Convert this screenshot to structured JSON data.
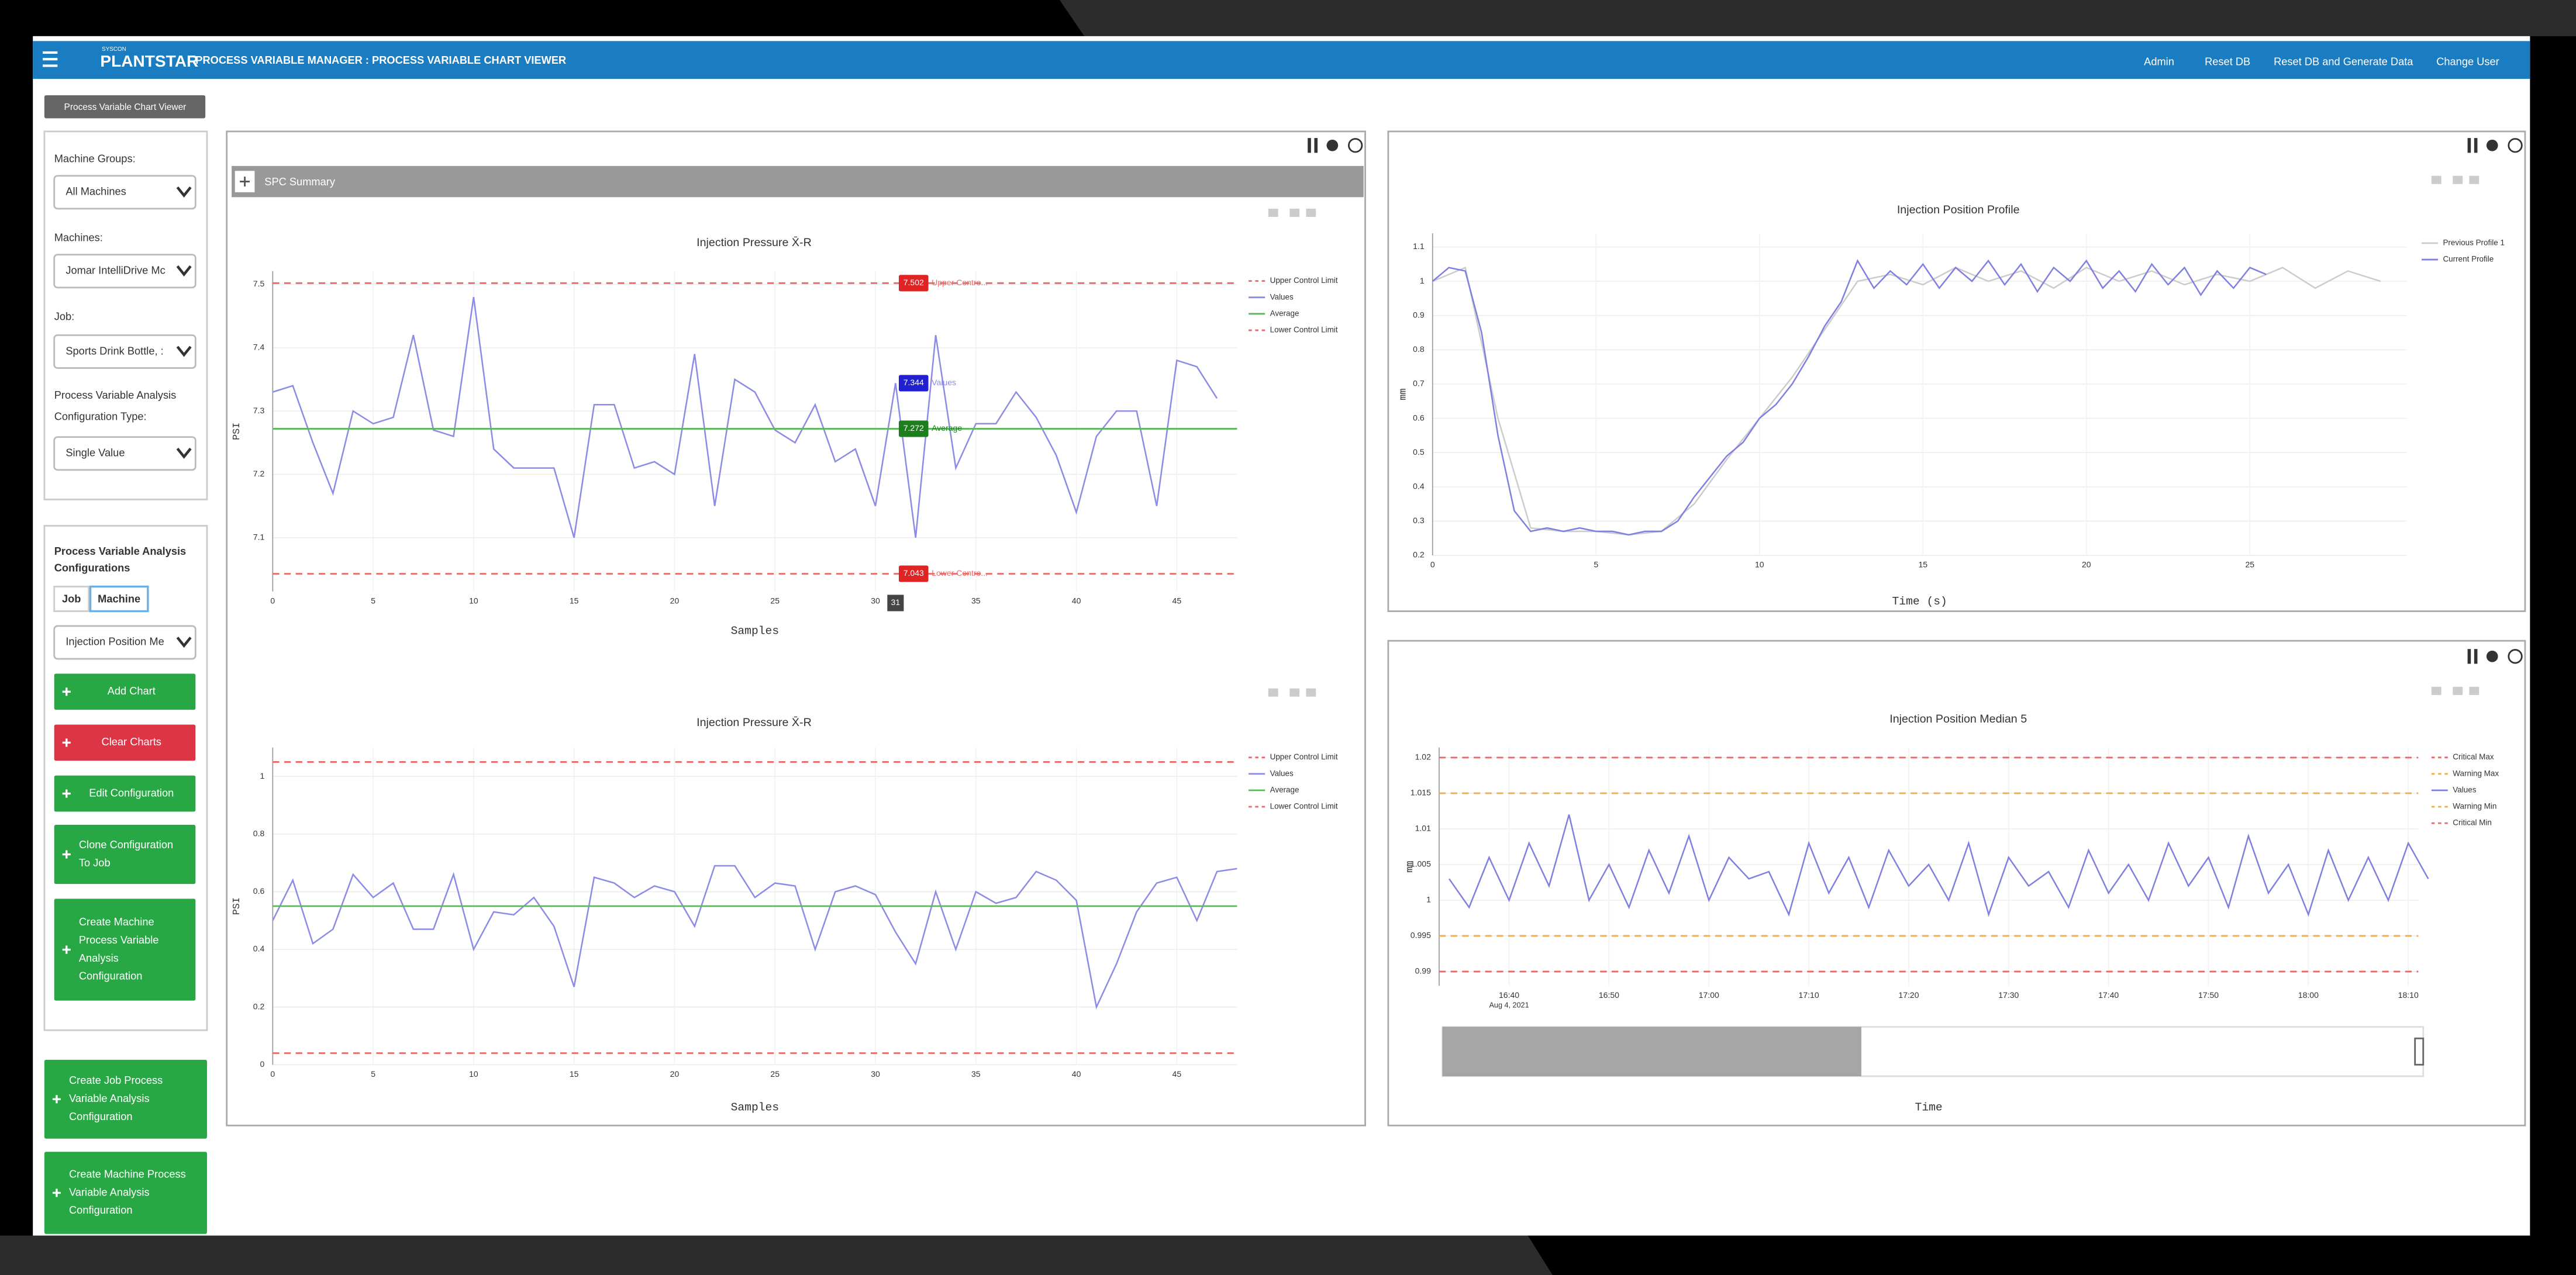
{
  "header": {
    "brand_small": "SYSCON",
    "brand": "PLANTSTAR",
    "title": "PROCESS VARIABLE MANAGER : PROCESS VARIABLE CHART VIEWER",
    "menu": [
      "Admin",
      "Reset DB",
      "Reset DB and Generate Data",
      "Change User"
    ]
  },
  "view_selector": "Process Variable Chart Viewer",
  "sidebar": {
    "machine_groups_label": "Machine Groups:",
    "machine_groups": "All Machines",
    "machines_label": "Machines:",
    "machines": "Jomar IntelliDrive Mc",
    "job_label": "Job:",
    "job": "Sports Drink Bottle, :",
    "config_type_label": [
      "Process Variable Analysis",
      "Configuration Type:"
    ],
    "config_type": "Single Value",
    "configs_title": [
      "Process Variable Analysis",
      "Configurations"
    ],
    "tabs": [
      "Job",
      "Machine"
    ],
    "config": "Injection Position Me",
    "buttons": [
      {
        "lines": [
          "Add Chart"
        ],
        "color": "#28a745"
      },
      {
        "lines": [
          "Clear Charts"
        ],
        "color": "#dc3545"
      },
      {
        "lines": [
          "Edit Configuration"
        ],
        "color": "#28a745"
      },
      {
        "lines": [
          "Clone Configuration",
          "To Job"
        ],
        "color": "#28a745"
      },
      {
        "lines": [
          "Create Machine",
          "Process Variable",
          "Analysis",
          "Configuration"
        ],
        "color": "#28a745"
      },
      {
        "lines": [
          "Create Job Process",
          "Variable Analysis",
          "Configuration"
        ],
        "color": "#28a745"
      },
      {
        "lines": [
          "Create Machine Process",
          "Variable Analysis",
          "Configuration"
        ],
        "color": "#28a745"
      }
    ]
  },
  "spc_summary": "SPC Summary",
  "chart_data": [
    {
      "type": "line",
      "title": "Injection Pressure X̄-R",
      "x_label": "Samples",
      "y_label": "PSI",
      "xlim": [
        0,
        48
      ],
      "xticks": [
        0,
        5,
        10,
        15,
        20,
        25,
        30,
        35,
        40,
        45
      ],
      "ylim": [
        7.015,
        7.521
      ],
      "yticks": [
        7.1,
        7.2,
        7.3,
        7.4,
        7.5
      ],
      "hover_x": 31,
      "series": [
        {
          "name": "Upper Control Limit",
          "color": "#e86a6a",
          "dash": true,
          "value": 7.502,
          "label": "Upper Contro..."
        },
        {
          "name": "Values",
          "color": "#8c8ce6",
          "tag_value": 7.344,
          "label": "Values",
          "x": [
            0,
            1,
            2,
            3,
            4,
            5,
            6,
            7,
            8,
            9,
            10,
            11,
            12,
            13,
            14,
            15,
            16,
            17,
            18,
            19,
            20,
            21,
            22,
            23,
            24,
            25,
            26,
            27,
            28,
            29,
            30,
            31,
            32,
            33,
            34,
            35,
            36,
            37,
            38,
            39,
            40,
            41,
            42,
            43,
            44,
            45,
            46,
            47
          ],
          "values": [
            7.33,
            7.34,
            7.25,
            7.17,
            7.3,
            7.28,
            7.29,
            7.42,
            7.27,
            7.26,
            7.48,
            7.24,
            7.21,
            7.21,
            7.21,
            7.1,
            7.31,
            7.31,
            7.21,
            7.22,
            7.2,
            7.39,
            7.15,
            7.35,
            7.33,
            7.27,
            7.25,
            7.31,
            7.22,
            7.24,
            7.15,
            7.344,
            7.1,
            7.42,
            7.21,
            7.28,
            7.28,
            7.33,
            7.29,
            7.23,
            7.14,
            7.26,
            7.3,
            7.3,
            7.15,
            7.38,
            7.37,
            7.32
          ]
        },
        {
          "name": "Average",
          "color": "#5cb85c",
          "value": 7.272,
          "label": "Average",
          "tag_color": "#1e7e1e"
        },
        {
          "name": "Lower Control Limit",
          "color": "#e86a6a",
          "dash": true,
          "value": 7.043,
          "label": "Lower Contro..."
        }
      ]
    },
    {
      "type": "line",
      "title": "Injection Pressure X̄-R",
      "x_label": "Samples",
      "y_label": "PSI",
      "xlim": [
        0,
        48
      ],
      "xticks": [
        0,
        5,
        10,
        15,
        20,
        25,
        30,
        35,
        40,
        45
      ],
      "ylim": [
        0,
        1.1
      ],
      "yticks": [
        0,
        0.2,
        0.4,
        0.6,
        0.8,
        1
      ],
      "series": [
        {
          "name": "Upper Control Limit",
          "color": "#e86a6a",
          "dash": true,
          "value": 1.05
        },
        {
          "name": "Values",
          "color": "#8c8ce6",
          "x": [
            0,
            1,
            2,
            3,
            4,
            5,
            6,
            7,
            8,
            9,
            10,
            11,
            12,
            13,
            14,
            15,
            16,
            17,
            18,
            19,
            20,
            21,
            22,
            23,
            24,
            25,
            26,
            27,
            28,
            29,
            30,
            31,
            32,
            33,
            34,
            35,
            36,
            37,
            38,
            39,
            40,
            41,
            42,
            43,
            44,
            45,
            46,
            47,
            48
          ],
          "values": [
            0.5,
            0.64,
            0.42,
            0.47,
            0.66,
            0.58,
            0.63,
            0.47,
            0.47,
            0.66,
            0.4,
            0.53,
            0.52,
            0.58,
            0.48,
            0.27,
            0.65,
            0.63,
            0.58,
            0.62,
            0.6,
            0.48,
            0.69,
            0.69,
            0.58,
            0.63,
            0.62,
            0.4,
            0.6,
            0.62,
            0.59,
            0.46,
            0.35,
            0.6,
            0.4,
            0.6,
            0.56,
            0.58,
            0.67,
            0.64,
            0.57,
            0.2,
            0.35,
            0.53,
            0.63,
            0.65,
            0.5,
            0.67,
            0.68
          ]
        },
        {
          "name": "Average",
          "color": "#5cb85c",
          "value": 0.55
        },
        {
          "name": "Lower Control Limit",
          "color": "#e86a6a",
          "dash": true,
          "value": 0.04
        }
      ]
    },
    {
      "type": "line",
      "title": "Injection Position Profile",
      "x_label": "Time (s)",
      "y_label": "mm",
      "xlim": [
        0,
        29.8
      ],
      "xticks": [
        0,
        5,
        10,
        15,
        20,
        25
      ],
      "ylim": [
        0.2,
        1.14
      ],
      "yticks": [
        0.2,
        0.3,
        0.4,
        0.5,
        0.6,
        0.7,
        0.8,
        0.9,
        1,
        1.1
      ],
      "series": [
        {
          "name": "Previous Profile 1",
          "color": "#cccccc",
          "x": [
            0,
            1,
            2,
            3,
            4,
            5,
            6,
            7,
            8,
            9,
            10,
            11,
            12,
            13,
            14,
            15,
            16,
            17,
            18,
            19,
            20,
            21,
            22,
            23,
            24,
            25,
            26,
            27,
            28,
            29
          ],
          "values": [
            1.0,
            1.04,
            0.6,
            0.28,
            0.27,
            0.27,
            0.26,
            0.27,
            0.35,
            0.48,
            0.6,
            0.72,
            0.86,
            1.0,
            1.02,
            0.99,
            1.04,
            1.0,
            1.03,
            0.98,
            1.04,
            1.0,
            1.03,
            0.99,
            1.02,
            1.0,
            1.04,
            0.98,
            1.03,
            1.0
          ]
        },
        {
          "name": "Current Profile",
          "color": "#8080e0",
          "x": [
            0,
            0.5,
            1,
            1.5,
            2,
            2.5,
            3,
            3.5,
            4,
            4.5,
            5,
            5.5,
            6,
            6.5,
            7,
            7.5,
            8,
            8.5,
            9,
            9.5,
            10,
            10.5,
            11,
            11.5,
            12,
            12.5,
            13,
            13.5,
            14,
            14.5,
            15,
            15.5,
            16,
            16.5,
            17,
            17.5,
            18,
            18.5,
            19,
            19.5,
            20,
            20.5,
            21,
            21.5,
            22,
            22.5,
            23,
            23.5,
            24,
            24.5,
            25,
            25.5
          ],
          "values": [
            1.0,
            1.04,
            1.03,
            0.85,
            0.55,
            0.33,
            0.27,
            0.28,
            0.27,
            0.28,
            0.27,
            0.27,
            0.26,
            0.27,
            0.27,
            0.3,
            0.37,
            0.43,
            0.49,
            0.53,
            0.6,
            0.64,
            0.7,
            0.78,
            0.87,
            0.94,
            1.06,
            0.98,
            1.03,
            0.99,
            1.05,
            0.98,
            1.04,
            1.0,
            1.06,
            0.99,
            1.05,
            0.97,
            1.04,
            1.0,
            1.06,
            0.98,
            1.03,
            0.97,
            1.05,
            0.99,
            1.04,
            0.96,
            1.03,
            0.98,
            1.04,
            1.02
          ]
        }
      ]
    },
    {
      "type": "line",
      "title": "Injection Position Median 5",
      "x_label": "Time",
      "y_label": "mm",
      "x_date_label": "Aug 4, 2021",
      "xlim": [
        "16:33",
        "18:11"
      ],
      "xticks": [
        "16:40",
        "16:50",
        "17:00",
        "17:10",
        "17:20",
        "17:30",
        "17:40",
        "17:50",
        "18:00",
        "18:10"
      ],
      "ylim": [
        0.988,
        1.0214
      ],
      "yticks": [
        0.99,
        0.995,
        1,
        1.005,
        1.01,
        1.015,
        1.02
      ],
      "series": [
        {
          "name": "Critical Max",
          "color": "#e86a6a",
          "dash": true,
          "value": 1.02
        },
        {
          "name": "Warning Max",
          "color": "#f0ad4e",
          "dash": true,
          "value": 1.015
        },
        {
          "name": "Values",
          "color": "#8080e0",
          "x": [
            "16:34",
            "16:36",
            "16:38",
            "16:40",
            "16:42",
            "16:44",
            "16:46",
            "16:48",
            "16:50",
            "16:52",
            "16:54",
            "16:56",
            "16:58",
            "17:00",
            "17:02",
            "17:04",
            "17:06",
            "17:08",
            "17:10",
            "17:12",
            "17:14",
            "17:16",
            "17:18",
            "17:20",
            "17:22",
            "17:24",
            "17:26",
            "17:28",
            "17:30",
            "17:32",
            "17:34",
            "17:36",
            "17:38",
            "17:40",
            "17:42",
            "17:44",
            "17:46",
            "17:48",
            "17:50",
            "17:52",
            "17:54",
            "17:56",
            "17:58",
            "18:00",
            "18:02",
            "18:04",
            "18:06",
            "18:08",
            "18:10",
            "18:12"
          ],
          "values": [
            1.003,
            0.999,
            1.006,
            1.0,
            1.008,
            1.002,
            1.012,
            1.0,
            1.005,
            0.999,
            1.007,
            1.001,
            1.009,
            1.0,
            1.006,
            1.003,
            1.004,
            0.998,
            1.008,
            1.001,
            1.006,
            0.999,
            1.007,
            1.002,
            1.005,
            1.0,
            1.008,
            0.998,
            1.006,
            1.002,
            1.004,
            0.999,
            1.007,
            1.001,
            1.005,
            1.0,
            1.008,
            1.002,
            1.006,
            0.999,
            1.009,
            1.001,
            1.005,
            0.998,
            1.007,
            1.0,
            1.006,
            1.0,
            1.008,
            1.003
          ]
        },
        {
          "name": "Warning Min",
          "color": "#f0ad4e",
          "dash": true,
          "value": 0.995
        },
        {
          "name": "Critical Min",
          "color": "#e86a6a",
          "dash": true,
          "value": 0.99
        }
      ]
    }
  ]
}
